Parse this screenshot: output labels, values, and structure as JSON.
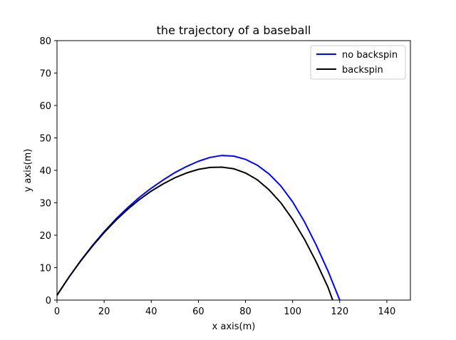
{
  "chart_data": {
    "type": "line",
    "title": "the trajectory of a baseball",
    "xlabel": "x axis(m)",
    "ylabel": "y axis(m)",
    "xlim": [
      0,
      150
    ],
    "ylim": [
      0,
      80
    ],
    "xticks": [
      0,
      20,
      40,
      60,
      80,
      100,
      120,
      140
    ],
    "yticks": [
      0,
      10,
      20,
      30,
      40,
      50,
      60,
      70,
      80
    ],
    "grid": false,
    "legend_position": "upper-right",
    "series": [
      {
        "name": "no backspin",
        "color": "#0000ff",
        "points": [
          [
            0,
            1.5
          ],
          [
            5,
            7.0
          ],
          [
            10,
            12.1
          ],
          [
            15,
            16.8
          ],
          [
            20,
            21.1
          ],
          [
            25,
            25.0
          ],
          [
            30,
            28.5
          ],
          [
            35,
            31.7
          ],
          [
            40,
            34.5
          ],
          [
            45,
            37.0
          ],
          [
            50,
            39.3
          ],
          [
            55,
            41.2
          ],
          [
            60,
            42.8
          ],
          [
            65,
            44.0
          ],
          [
            70,
            44.6
          ],
          [
            75,
            44.4
          ],
          [
            80,
            43.4
          ],
          [
            85,
            41.6
          ],
          [
            90,
            38.9
          ],
          [
            95,
            35.2
          ],
          [
            100,
            30.3
          ],
          [
            105,
            24.2
          ],
          [
            110,
            17.0
          ],
          [
            115,
            9.0
          ],
          [
            120,
            0
          ]
        ]
      },
      {
        "name": "backspin",
        "color": "#000000",
        "points": [
          [
            0,
            1.5
          ],
          [
            5,
            7.0
          ],
          [
            10,
            12.0
          ],
          [
            15,
            16.6
          ],
          [
            20,
            20.8
          ],
          [
            25,
            24.6
          ],
          [
            30,
            28.0
          ],
          [
            35,
            31.0
          ],
          [
            40,
            33.6
          ],
          [
            45,
            35.8
          ],
          [
            50,
            37.7
          ],
          [
            55,
            39.2
          ],
          [
            60,
            40.3
          ],
          [
            65,
            40.9
          ],
          [
            70,
            41.0
          ],
          [
            75,
            40.5
          ],
          [
            80,
            39.2
          ],
          [
            85,
            37.1
          ],
          [
            90,
            34.0
          ],
          [
            95,
            30.0
          ],
          [
            100,
            24.9
          ],
          [
            105,
            18.8
          ],
          [
            110,
            11.8
          ],
          [
            115,
            4.0
          ],
          [
            117,
            0
          ]
        ]
      }
    ]
  }
}
